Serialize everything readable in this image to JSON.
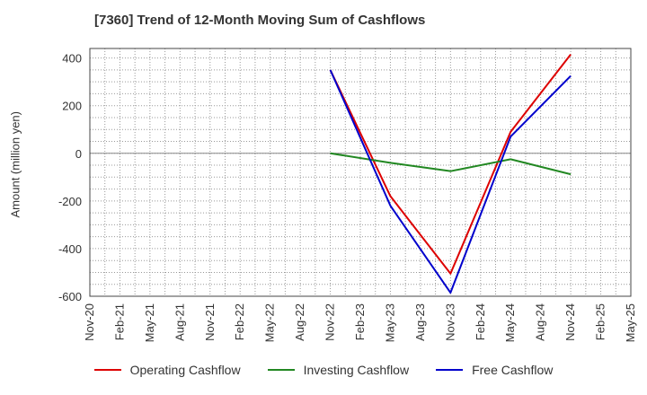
{
  "title": "[7360]  Trend of 12-Month Moving Sum of Cashflows",
  "chart_data": {
    "type": "line",
    "title": "[7360]  Trend of 12-Month Moving Sum of Cashflows",
    "xlabel": "",
    "ylabel": "Amount (million yen)",
    "ylim": [
      -600,
      440
    ],
    "yticks": [
      400,
      200,
      0,
      -200,
      -400,
      -600
    ],
    "categories": [
      "Nov-20",
      "Feb-21",
      "May-21",
      "Aug-21",
      "Nov-21",
      "Feb-22",
      "May-22",
      "Aug-22",
      "Nov-22",
      "Feb-23",
      "May-23",
      "Aug-23",
      "Nov-23",
      "Feb-24",
      "May-24",
      "Aug-24",
      "Nov-24",
      "Feb-25",
      "May-25"
    ],
    "grid": true,
    "legend_position": "bottom",
    "series": [
      {
        "name": "Operating Cashflow",
        "color": "#dd0000",
        "points": [
          [
            "Nov-22",
            350
          ],
          [
            "May-23",
            -180
          ],
          [
            "Nov-23",
            -505
          ],
          [
            "May-24",
            90
          ],
          [
            "Nov-24",
            415
          ]
        ]
      },
      {
        "name": "Investing Cashflow",
        "color": "#228822",
        "points": [
          [
            "Nov-22",
            0
          ],
          [
            "May-23",
            -40
          ],
          [
            "Nov-23",
            -75
          ],
          [
            "May-24",
            -25
          ],
          [
            "Nov-24",
            -88
          ]
        ]
      },
      {
        "name": "Free Cashflow",
        "color": "#0000cc",
        "points": [
          [
            "Nov-22",
            350
          ],
          [
            "May-23",
            -220
          ],
          [
            "Nov-23",
            -585
          ],
          [
            "May-24",
            70
          ],
          [
            "Nov-24",
            325
          ]
        ]
      }
    ]
  }
}
